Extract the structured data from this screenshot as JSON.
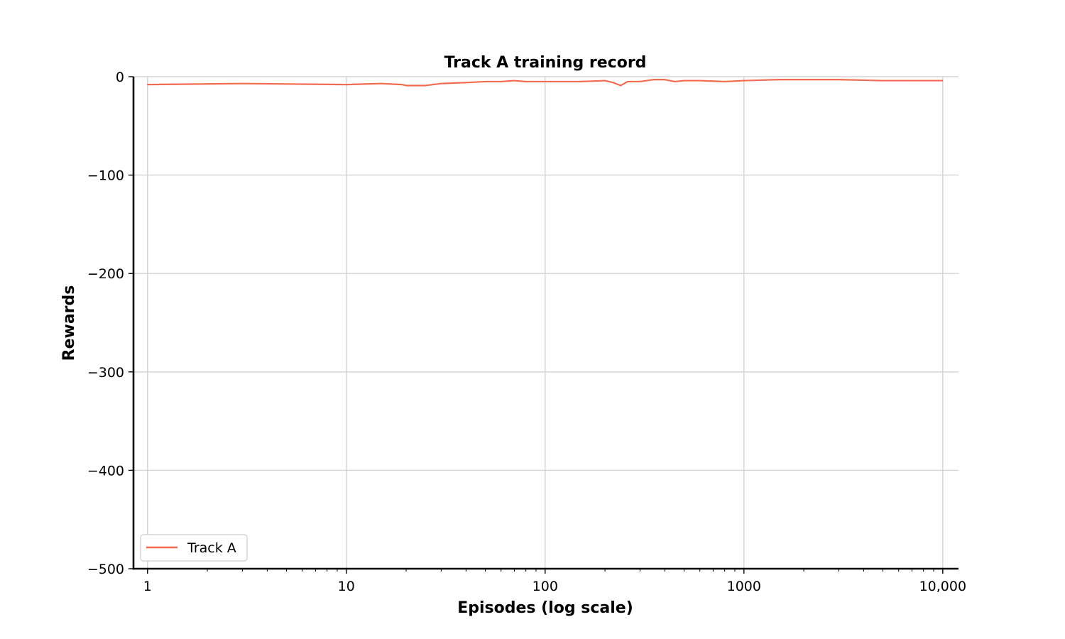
{
  "chart_data": {
    "type": "line",
    "title": "Track A training record",
    "xlabel": "Episodes (log scale)",
    "ylabel": "Rewards",
    "xscale": "log",
    "xlim": [
      0.85,
      12000
    ],
    "ylim": [
      -500,
      0
    ],
    "xticks": [
      1,
      10,
      100,
      1000,
      10000
    ],
    "xtick_labels": [
      "1",
      "10",
      "100",
      "1000",
      "10,000"
    ],
    "yticks": [
      0,
      -100,
      -200,
      -300,
      -400,
      -500
    ],
    "ytick_labels": [
      "0",
      "−100",
      "−200",
      "−300",
      "−400",
      "−500"
    ],
    "grid": true,
    "legend_position": "lower-left",
    "series": [
      {
        "name": "Track A",
        "color": "#f26b50",
        "x": [
          1,
          3,
          10,
          15,
          19,
          20,
          25,
          30,
          40,
          50,
          60,
          70,
          80,
          100,
          150,
          200,
          220,
          240,
          260,
          300,
          350,
          400,
          450,
          500,
          600,
          800,
          1000,
          1500,
          2000,
          3000,
          5000,
          7000,
          10000
        ],
        "y": [
          -8,
          -7,
          -8,
          -7,
          -8,
          -9,
          -9,
          -7,
          -6,
          -5,
          -5,
          -4,
          -5,
          -5,
          -5,
          -4,
          -6,
          -9,
          -5,
          -5,
          -3,
          -3,
          -5,
          -4,
          -4,
          -5,
          -4,
          -3,
          -3,
          -3,
          -4,
          -4,
          -4
        ]
      }
    ]
  }
}
